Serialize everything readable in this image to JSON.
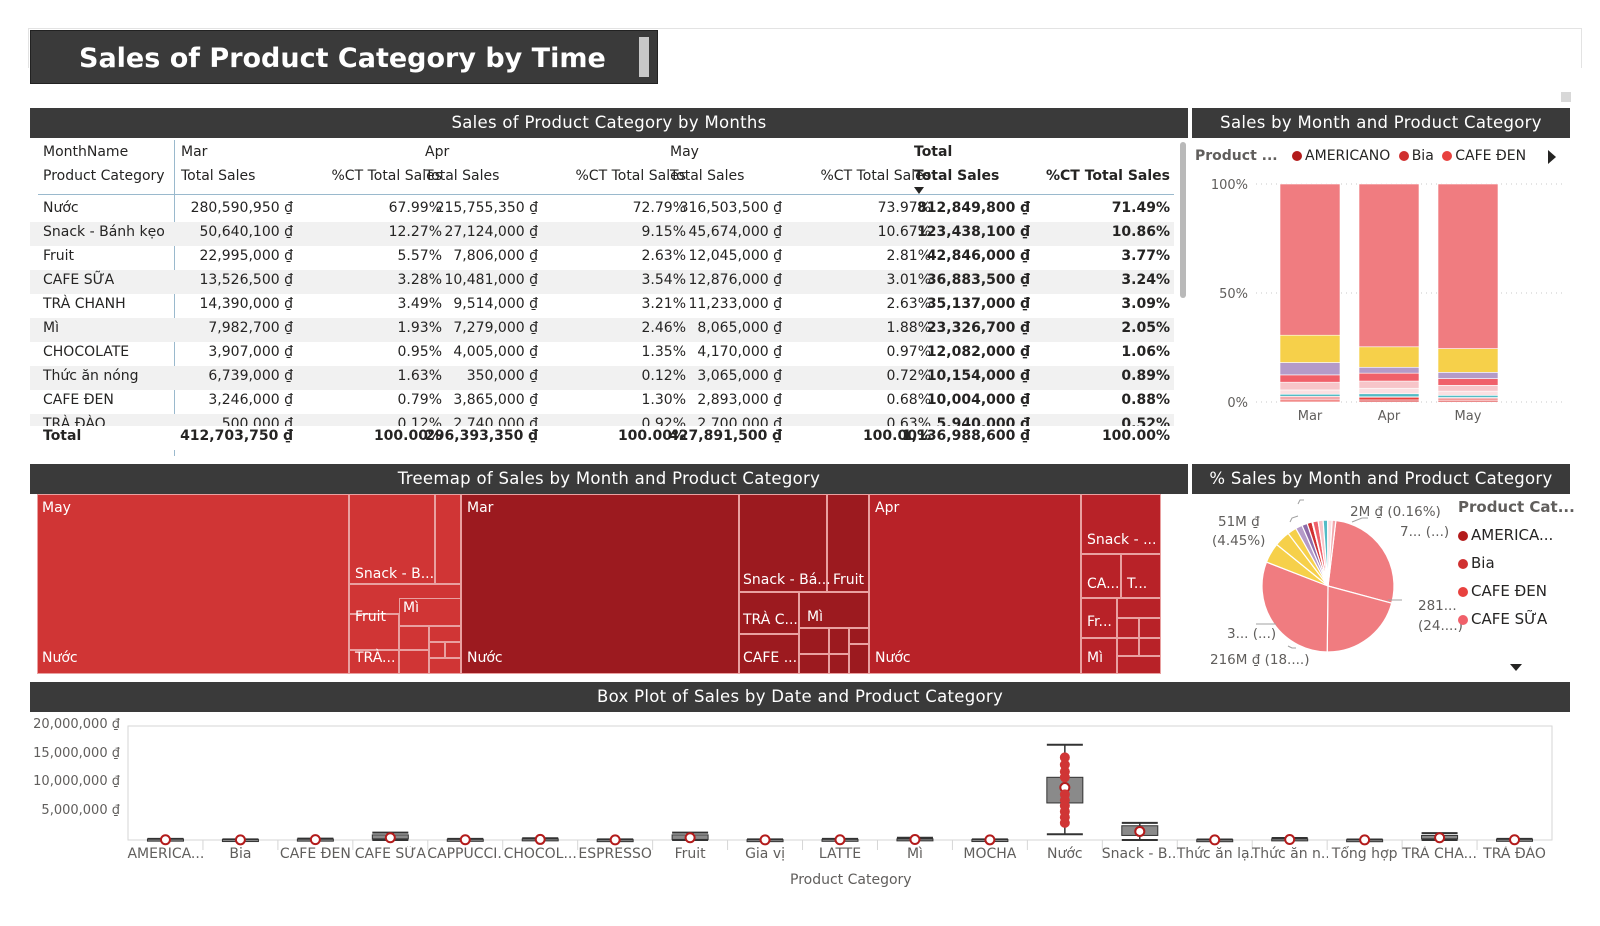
{
  "page": {
    "title": "Sales of Product Category by Time"
  },
  "visuals": {
    "matrix_title": "Sales of Product Category by Months",
    "stacked_title": "Sales by Month and Product Category",
    "treemap_title": "Treemap of Sales by Month and Product Category",
    "pie_title": "% Sales by Month and Product Category",
    "boxplot_title": "Box Plot of Sales by Date and Product Category"
  },
  "matrix": {
    "col_header_label": "MonthName",
    "row_header_label": "Product Category",
    "months": [
      "Mar",
      "Apr",
      "May"
    ],
    "total_label": "Total",
    "measure_sales": "Total Sales",
    "measure_pct": "%CT Total Sales",
    "rows": [
      {
        "category": "Nước",
        "mar_sales": "280,590,950 ₫",
        "mar_pct": "67.99%",
        "apr_sales": "215,755,350 ₫",
        "apr_pct": "72.79%",
        "may_sales": "316,503,500 ₫",
        "may_pct": "73.97%",
        "total_sales": "812,849,800 ₫",
        "total_pct": "71.49%"
      },
      {
        "category": "Snack - Bánh kẹo",
        "mar_sales": "50,640,100 ₫",
        "mar_pct": "12.27%",
        "apr_sales": "27,124,000 ₫",
        "apr_pct": "9.15%",
        "may_sales": "45,674,000 ₫",
        "may_pct": "10.67%",
        "total_sales": "123,438,100 ₫",
        "total_pct": "10.86%"
      },
      {
        "category": "Fruit",
        "mar_sales": "22,995,000 ₫",
        "mar_pct": "5.57%",
        "apr_sales": "7,806,000 ₫",
        "apr_pct": "2.63%",
        "may_sales": "12,045,000 ₫",
        "may_pct": "2.81%",
        "total_sales": "42,846,000 ₫",
        "total_pct": "3.77%"
      },
      {
        "category": "CAFE SỮA",
        "mar_sales": "13,526,500 ₫",
        "mar_pct": "3.28%",
        "apr_sales": "10,481,000 ₫",
        "apr_pct": "3.54%",
        "may_sales": "12,876,000 ₫",
        "may_pct": "3.01%",
        "total_sales": "36,883,500 ₫",
        "total_pct": "3.24%"
      },
      {
        "category": "TRÀ CHANH",
        "mar_sales": "14,390,000 ₫",
        "mar_pct": "3.49%",
        "apr_sales": "9,514,000 ₫",
        "apr_pct": "3.21%",
        "may_sales": "11,233,000 ₫",
        "may_pct": "2.63%",
        "total_sales": "35,137,000 ₫",
        "total_pct": "3.09%"
      },
      {
        "category": "Mì",
        "mar_sales": "7,982,700 ₫",
        "mar_pct": "1.93%",
        "apr_sales": "7,279,000 ₫",
        "apr_pct": "2.46%",
        "may_sales": "8,065,000 ₫",
        "may_pct": "1.88%",
        "total_sales": "23,326,700 ₫",
        "total_pct": "2.05%"
      },
      {
        "category": "CHOCOLATE",
        "mar_sales": "3,907,000 ₫",
        "mar_pct": "0.95%",
        "apr_sales": "4,005,000 ₫",
        "apr_pct": "1.35%",
        "may_sales": "4,170,000 ₫",
        "may_pct": "0.97%",
        "total_sales": "12,082,000 ₫",
        "total_pct": "1.06%"
      },
      {
        "category": "Thức ăn nóng",
        "mar_sales": "6,739,000 ₫",
        "mar_pct": "1.63%",
        "apr_sales": "350,000 ₫",
        "apr_pct": "0.12%",
        "may_sales": "3,065,000 ₫",
        "may_pct": "0.72%",
        "total_sales": "10,154,000 ₫",
        "total_pct": "0.89%"
      },
      {
        "category": "CAFE ĐEN",
        "mar_sales": "3,246,000 ₫",
        "mar_pct": "0.79%",
        "apr_sales": "3,865,000 ₫",
        "apr_pct": "1.30%",
        "may_sales": "2,893,000 ₫",
        "may_pct": "0.68%",
        "total_sales": "10,004,000 ₫",
        "total_pct": "0.88%"
      },
      {
        "category": "TRÀ ĐÀO",
        "mar_sales": "500,000 ₫",
        "mar_pct": "0.12%",
        "apr_sales": "2,740,000 ₫",
        "apr_pct": "0.92%",
        "may_sales": "2,700,000 ₫",
        "may_pct": "0.63%",
        "total_sales": "5,940,000 ₫",
        "total_pct": "0.52%"
      }
    ],
    "total_row": {
      "category": "Total",
      "mar_sales": "412,703,750 ₫",
      "mar_pct": "100.00%",
      "apr_sales": "296,393,350 ₫",
      "apr_pct": "100.00%",
      "may_sales": "427,891,500 ₫",
      "may_pct": "100.00%",
      "total_sales": "1,136,988,600 ₫",
      "total_pct": "100.00%"
    }
  },
  "stacked_legend": {
    "title": "Product ...",
    "items": [
      {
        "name": "AMERICANO",
        "color": "#b31b1b"
      },
      {
        "name": "Bia",
        "color": "#d03030"
      },
      {
        "name": "CAFE ĐEN",
        "color": "#e8413e"
      }
    ]
  },
  "treemap": {
    "labels": {
      "may": "May",
      "mar": "Mar",
      "apr": "Apr",
      "may_nuoc": "Nước",
      "may_snack": "Snack - B...",
      "may_fruit": "Fruit",
      "may_mi": "Mì",
      "may_tra": "TRÀ...",
      "mar_nuoc": "Nước",
      "mar_snack": "Snack - Bá...",
      "mar_fruit": "Fruit",
      "mar_tra": "TRÀ C...",
      "mar_mi": "Mì",
      "mar_cafe": "CAFE ...",
      "apr_nuoc": "Nước",
      "apr_snack": "Snack - ...",
      "apr_ca": "CA...",
      "apr_t": "T...",
      "apr_fr": "Fr...",
      "apr_mi": "Mì"
    },
    "colors": {
      "may": "#d03535",
      "mar": "#9c1a1f",
      "apr": "#b82228"
    }
  },
  "pie_legend": {
    "title": "Product Cat...",
    "items": [
      {
        "name": "AMERICA...",
        "color": "#b31b1b"
      },
      {
        "name": "Bia",
        "color": "#d03030"
      },
      {
        "name": "CAFE ĐEN",
        "color": "#e8413e"
      },
      {
        "name": "CAFE SỮA",
        "color": "#f0606a"
      }
    ]
  },
  "pie_labels": {
    "l1a": "51M ₫",
    "l1b": "(4.45%)",
    "l2": "2M ₫ (0.16%)",
    "l3": "7... (...)",
    "l4a": "281...",
    "l4b": "(24....)",
    "l5": "3... (...)",
    "l6": "216M ₫ (18....)"
  },
  "chart_data": [
    {
      "type": "bar",
      "title": "Sales by Month and Product Category",
      "stacked": "100%",
      "categories": [
        "Mar",
        "Apr",
        "May"
      ],
      "y_ticks": [
        "100%",
        "50%",
        "0%"
      ],
      "ylim": [
        0,
        100
      ],
      "series": [
        {
          "name": "Nước",
          "values": [
            67.99,
            72.79,
            73.97
          ],
          "color": "#f07c80"
        },
        {
          "name": "Snack - Bánh kẹo",
          "values": [
            12.27,
            9.15,
            10.67
          ],
          "color": "#f6d04a"
        },
        {
          "name": "Fruit",
          "values": [
            5.57,
            2.63,
            2.81
          ],
          "color": "#b49ac8"
        },
        {
          "name": "CAFE SỮA",
          "values": [
            3.28,
            3.54,
            3.01
          ],
          "color": "#f0606a"
        },
        {
          "name": "TRÀ CHANH",
          "values": [
            3.49,
            3.21,
            2.63
          ],
          "color": "#f7c5c9"
        },
        {
          "name": "Mì",
          "values": [
            1.93,
            2.46,
            1.88
          ],
          "color": "#fbe0e2"
        },
        {
          "name": "CHOCOLATE",
          "values": [
            0.95,
            1.35,
            0.97
          ],
          "color": "#53bcc6"
        },
        {
          "name": "Thức ăn nóng",
          "values": [
            1.63,
            0.12,
            0.72
          ],
          "color": "#f3a7ab"
        },
        {
          "name": "CAFE ĐEN",
          "values": [
            0.79,
            1.3,
            0.68
          ],
          "color": "#e8413e"
        },
        {
          "name": "TRÀ ĐÀO",
          "values": [
            0.12,
            0.92,
            0.63
          ],
          "color": "#e05858"
        }
      ]
    },
    {
      "type": "pie",
      "title": "% Sales by Month and Product Category",
      "slices": [
        {
          "label": "281...",
          "value": 24.7,
          "color": "#f07c80"
        },
        {
          "label": "216M ₫ (18....)",
          "value": 19.0,
          "color": "#f07c80"
        },
        {
          "label": "3... (...)",
          "value": 27.8,
          "color": "#f07c80"
        },
        {
          "label": "51M ₫ (4.45%)",
          "value": 4.45,
          "color": "#f6d04a"
        },
        {
          "label": "",
          "value": 3.5,
          "color": "#f6d04a"
        },
        {
          "label": "",
          "value": 2.0,
          "color": "#f6d04a"
        },
        {
          "label": "",
          "value": 1.5,
          "color": "#b49ac8"
        },
        {
          "label": "",
          "value": 1.2,
          "color": "#8e6ba8"
        },
        {
          "label": "",
          "value": 1.1,
          "color": "#d03030"
        },
        {
          "label": "2M ₫ (0.16%)",
          "value": 0.16,
          "color": "#e8413e"
        },
        {
          "label": "",
          "value": 1.2,
          "color": "#f0606a"
        },
        {
          "label": "",
          "value": 1.1,
          "color": "#f7c5c9"
        },
        {
          "label": "7... (...)",
          "value": 1.0,
          "color": "#53bcc6"
        },
        {
          "label": "",
          "value": 1.0,
          "color": "#fbe0e2"
        },
        {
          "label": "",
          "value": 0.8,
          "color": "#f3a7ab"
        }
      ]
    },
    {
      "type": "box",
      "title": "Box Plot of Sales by Date and Product Category",
      "xlabel": "Product Category",
      "y_ticks": [
        "20,000,000 ₫",
        "15,000,000 ₫",
        "10,000,000 ₫",
        "5,000,000 ₫"
      ],
      "ylim": [
        0,
        20000000
      ],
      "categories": [
        "AMERICA...",
        "Bia",
        "CAFE ĐEN",
        "CAFE SỮA",
        "CAPPUCCI...",
        "CHOCOL...",
        "ESPRESSO",
        "Fruit",
        "Gia vị",
        "LATTE",
        "Mì",
        "MOCHA",
        "Nước",
        "Snack - B...",
        "Thức ăn lạ...",
        "Thức ăn n...",
        "Tổng hợp",
        "TRÀ CHA...",
        "TRÀ ĐÀO"
      ],
      "boxes": [
        {
          "min": 0,
          "q1": 0,
          "median": 50000,
          "q3": 150000,
          "max": 200000
        },
        {
          "min": 0,
          "q1": 0,
          "median": 30000,
          "q3": 80000,
          "max": 120000
        },
        {
          "min": 0,
          "q1": 0,
          "median": 60000,
          "q3": 150000,
          "max": 250000
        },
        {
          "min": 0,
          "q1": 200000,
          "median": 400000,
          "q3": 900000,
          "max": 1300000
        },
        {
          "min": 0,
          "q1": 0,
          "median": 50000,
          "q3": 120000,
          "max": 200000
        },
        {
          "min": 0,
          "q1": 0,
          "median": 100000,
          "q3": 200000,
          "max": 300000
        },
        {
          "min": 0,
          "q1": 0,
          "median": 20000,
          "q3": 60000,
          "max": 100000
        },
        {
          "min": 0,
          "q1": 100000,
          "median": 400000,
          "q3": 900000,
          "max": 1300000
        },
        {
          "min": 0,
          "q1": 0,
          "median": 20000,
          "q3": 60000,
          "max": 100000
        },
        {
          "min": 0,
          "q1": 0,
          "median": 50000,
          "q3": 120000,
          "max": 200000
        },
        {
          "min": 0,
          "q1": 0,
          "median": 80000,
          "q3": 200000,
          "max": 400000
        },
        {
          "min": 0,
          "q1": 0,
          "median": 30000,
          "q3": 80000,
          "max": 120000
        },
        {
          "min": 1000000,
          "q1": 6500000,
          "median": 9200000,
          "q3": 11000000,
          "max": 16700000
        },
        {
          "min": 0,
          "q1": 800000,
          "median": 1500000,
          "q3": 2500000,
          "max": 3000000
        },
        {
          "min": 0,
          "q1": 0,
          "median": 20000,
          "q3": 50000,
          "max": 80000
        },
        {
          "min": 0,
          "q1": 0,
          "median": 80000,
          "q3": 200000,
          "max": 350000
        },
        {
          "min": 0,
          "q1": 0,
          "median": 20000,
          "q3": 50000,
          "max": 80000
        },
        {
          "min": 0,
          "q1": 200000,
          "median": 400000,
          "q3": 800000,
          "max": 1200000
        },
        {
          "min": 0,
          "q1": 0,
          "median": 50000,
          "q3": 120000,
          "max": 200000
        }
      ],
      "outliers_nuoc": [
        12000000,
        13200000,
        11000000,
        8000000,
        7000000,
        6000000,
        5000000,
        4000000,
        3000000,
        14500000
      ]
    }
  ]
}
